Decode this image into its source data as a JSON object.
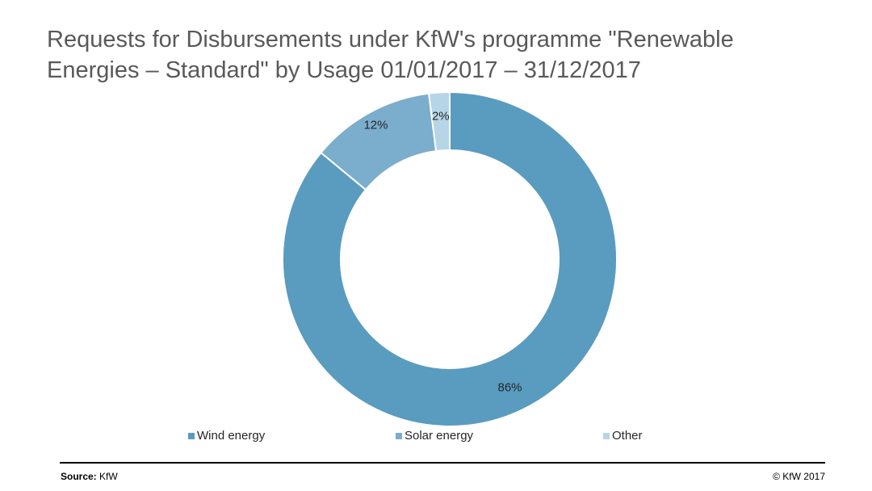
{
  "chart_data": {
    "type": "pie",
    "variant": "donut",
    "title_line1": "Requests for Disbursements under KfW's programme \"Renewable",
    "title_line2": "Energies – Standard\" by Usage 01/01/2017 – 31/12/2017",
    "categories": [
      "Wind energy",
      "Solar energy",
      "Other"
    ],
    "values": [
      86,
      12,
      2
    ],
    "data_labels": [
      "86%",
      "12%",
      "2%"
    ],
    "unit": "%",
    "colors": [
      "#5a9bc0",
      "#7badcd",
      "#b6d5e7"
    ],
    "legend_position": "bottom"
  },
  "footer": {
    "source_label": "Source:",
    "source_value": "KfW",
    "copyright": "© KfW 2017"
  }
}
